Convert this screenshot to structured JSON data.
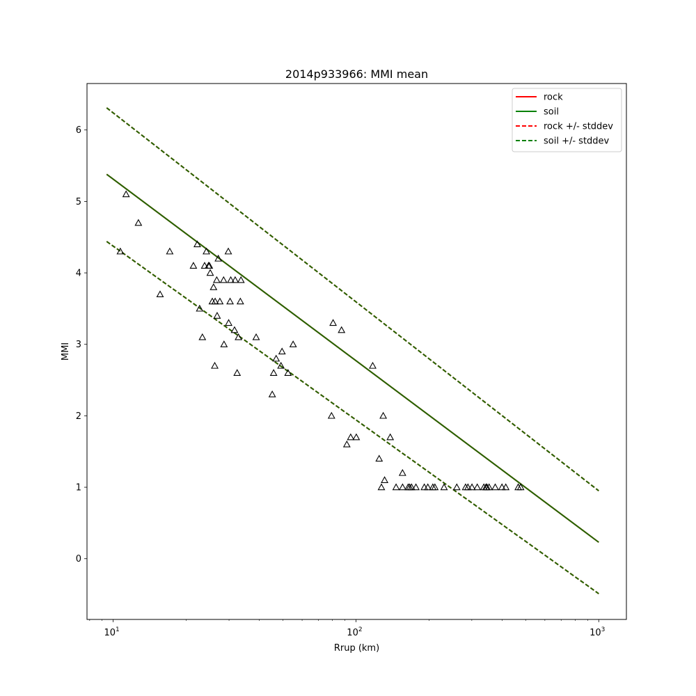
{
  "chart_data": {
    "type": "scatter",
    "title": "2014p933966: MMI mean",
    "xlabel": "Rrup (km)",
    "ylabel": "MMI",
    "xscale": "log",
    "xlim": [
      7.8,
      1300
    ],
    "ylim": [
      -0.85,
      6.65
    ],
    "grid": false,
    "legend_position": "top-right",
    "x_ticks": [
      {
        "value": 10,
        "base": "10",
        "exp": "1"
      },
      {
        "value": 100,
        "base": "10",
        "exp": "2"
      },
      {
        "value": 1000,
        "base": "10",
        "exp": "3"
      }
    ],
    "y_ticks": [
      0,
      1,
      2,
      3,
      4,
      5,
      6
    ],
    "legend": [
      {
        "label": "rock",
        "color": "#ff0000",
        "style": "solid"
      },
      {
        "label": "soil",
        "color": "#008000",
        "style": "solid"
      },
      {
        "label": "rock +/- stddev",
        "color": "#ff0000",
        "style": "dashed"
      },
      {
        "label": "soil +/- stddev",
        "color": "#008000",
        "style": "dashed"
      }
    ],
    "lines": [
      {
        "name": "rock",
        "color": "#ff0000",
        "style": "solid",
        "x": [
          9.4,
          1000
        ],
        "y": [
          5.38,
          0.23
        ]
      },
      {
        "name": "soil",
        "color": "#226600",
        "style": "solid",
        "x": [
          9.4,
          1000
        ],
        "y": [
          5.38,
          0.23
        ]
      },
      {
        "name": "rock +/- stddev",
        "color": "#ff0000",
        "style": "dashed",
        "x": [
          9.4,
          1000
        ],
        "y": [
          6.31,
          0.95
        ]
      },
      {
        "name": "rock +/- stddev",
        "color": "#ff0000",
        "style": "dashed",
        "x": [
          9.4,
          1000
        ],
        "y": [
          4.44,
          -0.49
        ]
      },
      {
        "name": "soil +/- stddev",
        "color": "#226600",
        "style": "dashed",
        "x": [
          9.4,
          1000
        ],
        "y": [
          6.31,
          0.95
        ]
      },
      {
        "name": "soil +/- stddev",
        "color": "#226600",
        "style": "dashed",
        "x": [
          9.4,
          1000
        ],
        "y": [
          4.44,
          -0.49
        ]
      }
    ],
    "points": {
      "marker": "triangle",
      "edge_color": "#000000",
      "x": [
        11.3,
        12.7,
        10.7,
        17.1,
        15.6,
        21.4,
        22.2,
        22.7,
        23.3,
        23.8,
        24.2,
        24.7,
        24.9,
        25.1,
        25.6,
        25.9,
        26.3,
        26.8,
        27.1,
        27.5,
        28.5,
        28.6,
        29.8,
        29.9,
        30.3,
        30.5,
        31.6,
        31.8,
        32.4,
        32.8,
        33.4,
        33.6,
        26.7,
        26.2,
        38.8,
        45.2,
        45.8,
        49.1,
        49.6,
        46.9,
        52.5,
        55.1,
        79.3,
        80.5,
        87.2,
        91.7,
        95.1,
        100.3,
        117.2,
        124.6,
        129.5,
        127.3,
        131.2,
        138.4,
        155.5,
        146.3,
        155.6,
        164.1,
        166.4,
        169.4,
        176.6,
        191.2,
        197.7,
        207.3,
        211.4,
        230.6,
        260.2,
        282.8,
        289.2,
        300.5,
        315.9,
        336.3,
        343.1,
        346.4,
        353.5,
        374.6,
        399.4,
        414.1,
        465.9,
        476.9
      ],
      "y": [
        5.1,
        4.7,
        4.3,
        4.3,
        3.7,
        4.1,
        4.4,
        3.5,
        3.1,
        4.1,
        4.3,
        4.1,
        4.1,
        4.0,
        3.6,
        3.8,
        3.6,
        3.4,
        4.2,
        3.6,
        3.9,
        3.0,
        4.3,
        3.3,
        3.6,
        3.9,
        3.2,
        3.9,
        2.6,
        3.1,
        3.6,
        3.9,
        3.9,
        2.7,
        3.1,
        2.3,
        2.6,
        2.7,
        2.9,
        2.8,
        2.6,
        3.0,
        2.0,
        3.3,
        3.2,
        1.6,
        1.7,
        1.7,
        2.7,
        1.4,
        2.0,
        1.0,
        1.1,
        1.7,
        1.2,
        1.0,
        1.0,
        1.0,
        1.0,
        1.0,
        1.0,
        1.0,
        1.0,
        1.0,
        1.0,
        1.0,
        1.0,
        1.0,
        1.0,
        1.0,
        1.0,
        1.0,
        1.0,
        1.0,
        1.0,
        1.0,
        1.0,
        1.0,
        1.0,
        1.0
      ]
    }
  }
}
